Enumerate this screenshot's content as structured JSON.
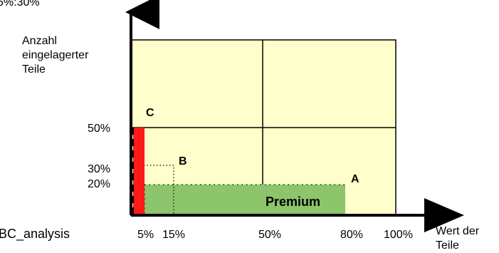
{
  "top_left_fragment": "5%:30%",
  "y_axis_label_lines": [
    "Anzahl",
    "eingelagerter",
    "Teile"
  ],
  "y_ticks": [
    "50%",
    "30%",
    "20%"
  ],
  "x_ticks": [
    "5%",
    "15%",
    "50%",
    "80%",
    "100%"
  ],
  "x_axis_label_lines": [
    "Wert der",
    "Teile"
  ],
  "bottom_left_fragment": "BC_analysis",
  "regions": {
    "A": "A",
    "B": "B",
    "C": "C",
    "premium": "Premium"
  },
  "colors": {
    "background": "#ffffcc",
    "premium_fill": "#8cc56b",
    "c_fill": "#ff1a1a",
    "axis": "#000000"
  }
}
